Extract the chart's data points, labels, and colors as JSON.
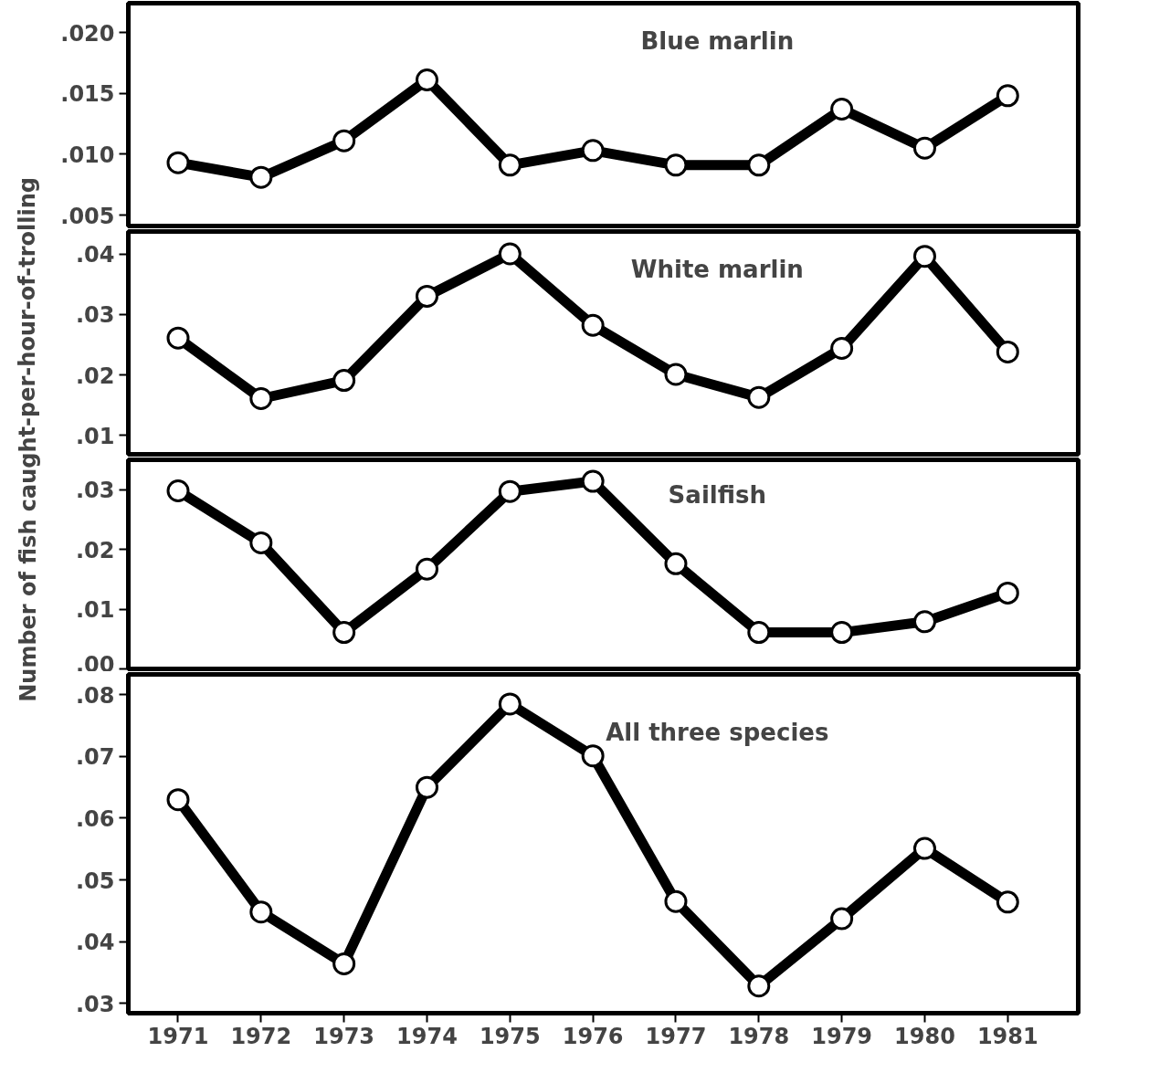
{
  "chart_data": [
    {
      "type": "line",
      "title": "Blue marlin",
      "ylabel": "Number of fish caught-per-hour-of-trolling",
      "x": [
        1971,
        1972,
        1973,
        1974,
        1975,
        1976,
        1977,
        1978,
        1979,
        1980,
        1981
      ],
      "series": [
        {
          "color": "#000000",
          "values": [
            0.0093,
            0.0081,
            0.0111,
            0.0161,
            0.0091,
            0.0103,
            0.0091,
            0.0091,
            0.0137,
            0.0105,
            0.0148
          ]
        }
      ],
      "xlim": [
        1970.4,
        1981.85
      ],
      "ylim": [
        0.0041,
        0.0224
      ],
      "yticks": [
        {
          "value": 0.005,
          "label": ".005"
        },
        {
          "value": 0.01,
          "label": ".010"
        },
        {
          "value": 0.015,
          "label": ".015"
        },
        {
          "value": 0.02,
          "label": ".020"
        }
      ],
      "tick_labels": "y",
      "grid": false,
      "marker": "circle",
      "line_style": "solid"
    },
    {
      "type": "line",
      "title": "White marlin",
      "x": [
        1971,
        1972,
        1973,
        1974,
        1975,
        1976,
        1977,
        1978,
        1979,
        1980,
        1981
      ],
      "series": [
        {
          "color": "#000000",
          "values": [
            0.0261,
            0.0161,
            0.0191,
            0.033,
            0.04,
            0.0282,
            0.0201,
            0.0163,
            0.0244,
            0.0396,
            0.0238
          ]
        }
      ],
      "xlim": [
        1970.4,
        1981.85
      ],
      "ylim": [
        0.0069,
        0.0437
      ],
      "yticks": [
        {
          "value": 0.01,
          "label": ".01"
        },
        {
          "value": 0.02,
          "label": ".02"
        },
        {
          "value": 0.03,
          "label": ".03"
        },
        {
          "value": 0.04,
          "label": ".04"
        }
      ],
      "tick_labels": "y",
      "grid": false,
      "marker": "circle",
      "line_style": "solid"
    },
    {
      "type": "line",
      "title": "Sailfish",
      "x": [
        1971,
        1972,
        1973,
        1974,
        1975,
        1976,
        1977,
        1978,
        1979,
        1980,
        1981
      ],
      "series": [
        {
          "color": "#000000",
          "values": [
            0.0298,
            0.0211,
            0.0061,
            0.0167,
            0.0297,
            0.0314,
            0.0176,
            0.0061,
            0.0061,
            0.0079,
            0.0127
          ]
        }
      ],
      "xlim": [
        1970.4,
        1981.85
      ],
      "ylim": [
        0.0,
        0.035
      ],
      "yticks": [
        {
          "value": 0.0,
          "label": ".00"
        },
        {
          "value": 0.01,
          "label": ".01"
        },
        {
          "value": 0.02,
          "label": ".02"
        },
        {
          "value": 0.03,
          "label": ".03"
        }
      ],
      "tick_labels": "y",
      "grid": false,
      "marker": "circle",
      "line_style": "solid"
    },
    {
      "type": "line",
      "title": "All three species",
      "x": [
        1971,
        1972,
        1973,
        1974,
        1975,
        1976,
        1977,
        1978,
        1979,
        1980,
        1981
      ],
      "series": [
        {
          "color": "#000000",
          "values": [
            0.063,
            0.0448,
            0.0364,
            0.065,
            0.0785,
            0.0701,
            0.0465,
            0.0328,
            0.0437,
            0.0551,
            0.0464
          ]
        }
      ],
      "xlim": [
        1970.4,
        1981.85
      ],
      "ylim": [
        0.0284,
        0.0833
      ],
      "xticks": [
        1971,
        1972,
        1973,
        1974,
        1975,
        1976,
        1977,
        1978,
        1979,
        1980,
        1981
      ],
      "yticks": [
        {
          "value": 0.03,
          "label": ".03"
        },
        {
          "value": 0.04,
          "label": ".04"
        },
        {
          "value": 0.05,
          "label": ".05"
        },
        {
          "value": 0.06,
          "label": ".06"
        },
        {
          "value": 0.07,
          "label": ".07"
        },
        {
          "value": 0.08,
          "label": ".08"
        }
      ],
      "grid": false,
      "marker": "circle",
      "line_style": "solid"
    }
  ]
}
